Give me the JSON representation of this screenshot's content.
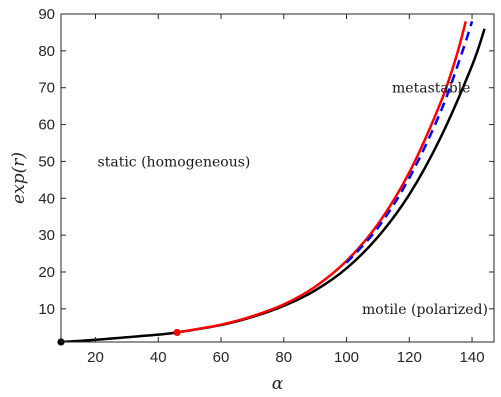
{
  "chart_data": {
    "type": "line",
    "xlabel": "α",
    "ylabel": "exp(r)",
    "xlim": [
      9,
      147
    ],
    "ylim": [
      1,
      90
    ],
    "xticks": [
      20,
      40,
      60,
      80,
      100,
      120,
      140
    ],
    "yticks": [
      10,
      20,
      30,
      40,
      50,
      60,
      70,
      80,
      90
    ],
    "grid": false,
    "annotations": [
      {
        "text": "static (homogeneous)",
        "x": 45,
        "y": 50
      },
      {
        "text": "metastable",
        "x": 127,
        "y": 70
      },
      {
        "text": "motile (polarized)",
        "x": 125,
        "y": 10
      }
    ],
    "series": [
      {
        "color": "#000000",
        "style": "solid",
        "x": [
          9,
          20,
          30,
          40,
          46,
          60,
          70,
          80,
          90,
          100,
          110,
          120,
          130,
          140,
          144
        ],
        "y": [
          1,
          1.6,
          2.3,
          3.0,
          3.6,
          5.6,
          7.8,
          10.8,
          15.0,
          21.0,
          29.5,
          41.0,
          56.5,
          76.0,
          86.0
        ]
      },
      {
        "color": "#ff0000",
        "style": "solid",
        "x": [
          46,
          60,
          70,
          80,
          90,
          100,
          110,
          120,
          130,
          135,
          138
        ],
        "y": [
          3.6,
          5.7,
          8.0,
          11.2,
          16.0,
          23.0,
          33.0,
          47.0,
          66.0,
          78.5,
          88.0
        ]
      },
      {
        "color": "#0000ff",
        "style": "dashed",
        "x": [
          100,
          110,
          120,
          130,
          137,
          140
        ],
        "y": [
          22.5,
          32.0,
          45.5,
          63.5,
          80.0,
          88.0
        ]
      }
    ],
    "markers": [
      {
        "x": 9,
        "y": 1,
        "color": "#000000"
      },
      {
        "x": 46,
        "y": 3.6,
        "color": "#ff0000"
      }
    ]
  }
}
